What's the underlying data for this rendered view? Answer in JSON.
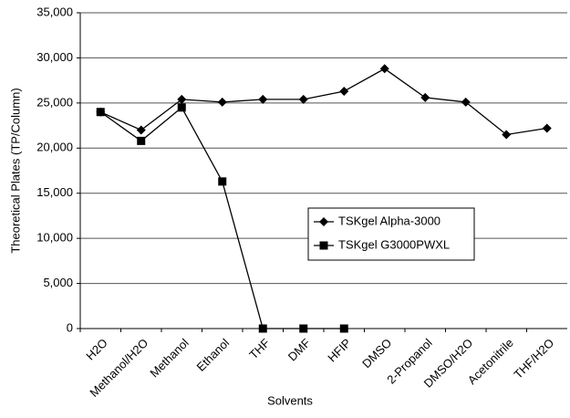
{
  "chart_data": {
    "type": "line",
    "x_label": "Solvents",
    "y_label": "Theoretical Plates (TP/Column)",
    "categories": [
      "H2O",
      "Methanol/H2O",
      "Methanol",
      "Ethanol",
      "THF",
      "DMF",
      "HFIP",
      "DMSO",
      "2-Propanol",
      "DMSO/H2O",
      "Acetonitrile",
      "THF/H2O"
    ],
    "series": [
      {
        "name": "TSKgel Alpha-3000",
        "color": "#000000",
        "marker": "diamond",
        "values": [
          24000,
          22000,
          25400,
          25100,
          25400,
          25400,
          26300,
          28800,
          25600,
          25100,
          21500,
          22200
        ]
      },
      {
        "name": "TSKgel G3000PWXL",
        "color": "#000000",
        "marker": "square",
        "values": [
          24000,
          20800,
          24500,
          16300,
          0,
          0,
          0,
          null,
          null,
          null,
          null,
          null
        ]
      }
    ],
    "ylim": [
      0,
      35000
    ],
    "yticks": [
      0,
      {
        "value": 5000,
        "label": "5,000"
      },
      {
        "value": 10000,
        "label": "10,000"
      },
      {
        "value": 15000,
        "label": "15,000"
      },
      {
        "value": 20000,
        "label": "20,000"
      },
      {
        "value": 25000,
        "label": "25,000"
      },
      {
        "value": 30000,
        "label": "30,000"
      },
      {
        "value": 35000,
        "label": "35,000"
      }
    ],
    "grid": true,
    "legend": "center-right"
  }
}
